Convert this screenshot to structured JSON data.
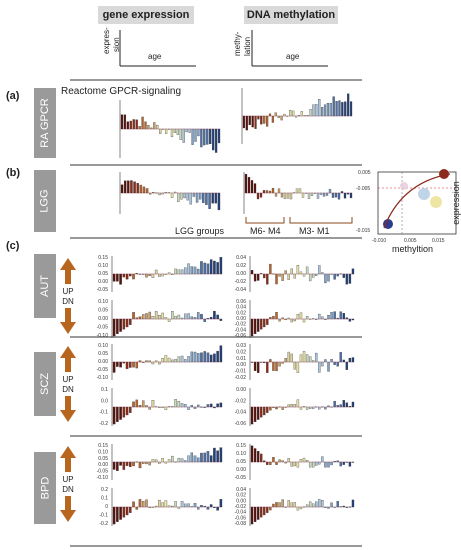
{
  "headers": {
    "gene_expression": "gene expression",
    "dna_methylation": "DNA methylation"
  },
  "schematic": {
    "expr_axis_label_1": "expres-",
    "expr_axis_label_2": "sion",
    "expr_x_label": "age",
    "meth_axis_label_1": "methy-",
    "meth_axis_label_2": "lation",
    "meth_x_label": "age"
  },
  "panels": {
    "a": {
      "letter": "(a)",
      "tab": "RA GPCR",
      "title": "Reactome GPCR-signaling"
    },
    "b": {
      "letter": "(b)",
      "tab": "LGG",
      "groups_label": "LGG groups",
      "group_left": "M6- M4",
      "group_right": "M3- M1",
      "inset": {
        "ylabel": "expression",
        "xlabel": "methyltion",
        "yticks": [
          "0.005",
          "-0.005",
          "-0.015"
        ],
        "xticks": [
          "-0.010",
          "0.005",
          "0.015"
        ]
      }
    },
    "c": {
      "letter": "(c)"
    },
    "aut": {
      "tab": "AUT",
      "up": "UP",
      "dn": "DN",
      "expr_up_ticks": [
        "0.15",
        "0.10",
        "0.05",
        "0.00",
        "-0.05"
      ],
      "expr_dn_ticks": [
        "0.10",
        "0.05",
        "0.00",
        "-0.05",
        "-0.10"
      ],
      "meth_up_ticks": [
        "0.04",
        "0.02",
        "0.00",
        "-0.02",
        "-0.04"
      ],
      "meth_dn_ticks": [
        "0.06",
        "0.04",
        "0.02",
        "0.00",
        "-0.02",
        "-0.04",
        "-0.06"
      ]
    },
    "scz": {
      "tab": "SCZ",
      "up": "UP",
      "dn": "DN",
      "expr_up_ticks": [
        "0.10",
        "0.05",
        "0.00",
        "-0.05",
        "-0.10"
      ],
      "expr_dn_ticks": [
        "0.1",
        "0.0",
        "-0.1",
        "-0.2"
      ],
      "meth_up_ticks": [
        "0.03",
        "0.02",
        "0.01",
        "0.00",
        "-0.01",
        "-0.02"
      ],
      "meth_dn_ticks": [
        "0.00",
        "-0.02",
        "-0.04",
        "-0.06"
      ]
    },
    "bpd": {
      "tab": "BPD",
      "up": "UP",
      "dn": "DN",
      "expr_up_ticks": [
        "0.15",
        "0.10",
        "0.05",
        "0.00",
        "-0.05",
        "-0.10"
      ],
      "expr_dn_ticks": [
        "0.2",
        "0.1",
        "0",
        "-0.1",
        "-0.2"
      ],
      "meth_up_ticks": [
        "0.15",
        "0.10",
        "0.05",
        "0.00",
        "-0.05"
      ],
      "meth_dn_ticks": [
        "0.04",
        "0.02",
        "0.00",
        "-0.02",
        "-0.04",
        "-0.06",
        "-0.08"
      ]
    }
  },
  "colors": {
    "tab_gray": "#9a9a9a",
    "arrow": "#b8651e",
    "dark_red": "#6a1810",
    "dark_blue": "#1f3a6e"
  }
}
